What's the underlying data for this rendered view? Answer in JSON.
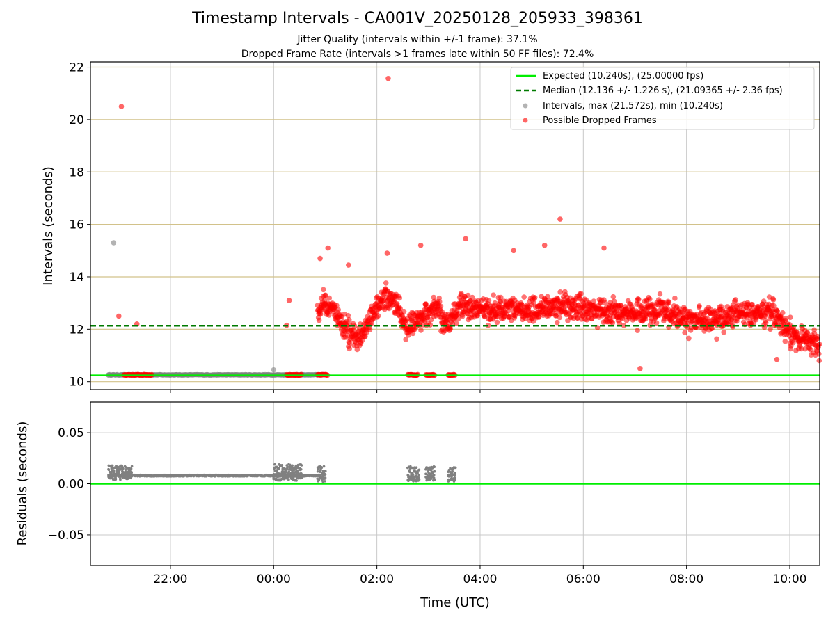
{
  "figure": {
    "title": "Timestamp Intervals - CA001V_20250128_205933_398361",
    "subtitle1": "Jitter Quality (intervals within +/-1 frame): 37.1%",
    "subtitle2": "Dropped Frame Rate (intervals >1 frames late within 50 FF files): 72.4%"
  },
  "chart_data": [
    {
      "type": "scatter",
      "name": "intervals",
      "ylabel": "Intervals (seconds)",
      "ylim": [
        9.7,
        22.2
      ],
      "xlim_hours": [
        -3.55,
        10.58
      ],
      "yticks": [
        10,
        12,
        14,
        16,
        18,
        20,
        22
      ],
      "grid": true,
      "legend_position": "top-right",
      "reference_lines": {
        "expected": 10.24,
        "median": 12.136,
        "horizontal_gridlines": [
          10,
          12,
          14,
          16,
          18,
          20,
          22
        ]
      },
      "legend": [
        "Expected (10.240s), (25.00000 fps)",
        "Median (12.136 +/- 1.226 s), (21.09365 +/- 2.36 fps)",
        "Intervals, max (21.572s), min (10.240s)",
        "Possible Dropped Frames"
      ],
      "series": [
        {
          "name": "Intervals, max (21.572s), min (10.240s)",
          "color": "#808080",
          "note_sparse_points": [
            [
              -3.1,
              15.3
            ],
            [
              0.0,
              10.45
            ],
            [
              -3.2,
              10.26
            ]
          ],
          "band": {
            "x_start": -3.2,
            "x_end": 0.95,
            "y": 10.26
          }
        },
        {
          "name": "Possible Dropped Frames",
          "color": "#ff0000",
          "outliers": [
            [
              -2.95,
              20.5
            ],
            [
              2.22,
              21.57
            ],
            [
              -3.0,
              12.5
            ],
            [
              -2.65,
              12.2
            ],
            [
              0.3,
              13.1
            ],
            [
              0.25,
              12.15
            ],
            [
              5.55,
              16.2
            ],
            [
              3.72,
              15.45
            ],
            [
              6.4,
              15.1
            ],
            [
              7.1,
              10.5
            ],
            [
              9.75,
              10.85
            ],
            [
              1.05,
              15.1
            ],
            [
              2.2,
              14.9
            ],
            [
              2.85,
              15.2
            ],
            [
              4.65,
              15.0
            ],
            [
              5.25,
              15.2
            ],
            [
              0.9,
              14.7
            ],
            [
              1.45,
              14.45
            ]
          ],
          "low_clusters": [
            {
              "x_start": -2.9,
              "x_end": -2.35,
              "y": 10.26
            },
            {
              "x_start": 0.25,
              "x_end": 0.55,
              "y": 10.26
            },
            {
              "x_start": 0.85,
              "x_end": 1.05,
              "y": 10.26
            },
            {
              "x_start": 2.6,
              "x_end": 2.8,
              "y": 10.26
            },
            {
              "x_start": 2.95,
              "x_end": 3.12,
              "y": 10.26
            },
            {
              "x_start": 3.38,
              "x_end": 3.52,
              "y": 10.26
            }
          ],
          "trend": [
            [
              0.85,
              12.5
            ],
            [
              1.0,
              13.0
            ],
            [
              1.2,
              12.7
            ],
            [
              1.4,
              11.9
            ],
            [
              1.6,
              11.6
            ],
            [
              1.8,
              12.1
            ],
            [
              2.0,
              12.9
            ],
            [
              2.2,
              13.2
            ],
            [
              2.4,
              13.0
            ],
            [
              2.55,
              12.0
            ],
            [
              2.75,
              12.3
            ],
            [
              2.9,
              12.5
            ],
            [
              3.15,
              12.8
            ],
            [
              3.4,
              12.1
            ],
            [
              3.6,
              12.9
            ],
            [
              4.0,
              12.7
            ],
            [
              4.5,
              12.8
            ],
            [
              5.0,
              12.7
            ],
            [
              5.5,
              12.9
            ],
            [
              6.0,
              12.8
            ],
            [
              6.5,
              12.7
            ],
            [
              7.0,
              12.6
            ],
            [
              7.5,
              12.8
            ],
            [
              8.0,
              12.3
            ],
            [
              8.5,
              12.4
            ],
            [
              9.0,
              12.6
            ],
            [
              9.5,
              12.6
            ],
            [
              9.75,
              12.5
            ],
            [
              10.0,
              11.8
            ],
            [
              10.3,
              11.6
            ],
            [
              10.58,
              11.4
            ]
          ]
        }
      ]
    },
    {
      "type": "scatter",
      "name": "residuals",
      "xlabel": "Time (UTC)",
      "ylabel": "Residuals (seconds)",
      "ylim": [
        -0.08,
        0.08
      ],
      "yticks": [
        0.05,
        0.0,
        -0.05
      ],
      "ytick_labels": [
        "0.05",
        "0.00",
        "−0.05"
      ],
      "xticks_hours": [
        -2,
        0,
        2,
        4,
        6,
        8,
        10
      ],
      "xtick_labels": [
        "22:00",
        "00:00",
        "02:00",
        "04:00",
        "06:00",
        "08:00",
        "10:00"
      ],
      "grid": true,
      "zero_line": 0.0,
      "series": [
        {
          "name": "residuals",
          "color": "#808080",
          "band": {
            "x_start": -3.2,
            "x_end": 0.9,
            "y": 0.008
          },
          "clusters": [
            {
              "x_start": -3.2,
              "x_end": -2.75,
              "y_min": 0.004,
              "y_max": 0.018
            },
            {
              "x_start": 0.0,
              "x_end": 0.55,
              "y_min": 0.003,
              "y_max": 0.019
            },
            {
              "x_start": 0.85,
              "x_end": 1.0,
              "y_min": 0.002,
              "y_max": 0.017
            },
            {
              "x_start": 2.6,
              "x_end": 2.82,
              "y_min": 0.002,
              "y_max": 0.017
            },
            {
              "x_start": 2.95,
              "x_end": 3.12,
              "y_min": 0.002,
              "y_max": 0.017
            },
            {
              "x_start": 3.38,
              "x_end": 3.52,
              "y_min": 0.002,
              "y_max": 0.017
            }
          ]
        }
      ]
    }
  ],
  "colors": {
    "expected_line": "#00ee00",
    "median_line": "#007a00",
    "horizontal_grid": "#d2c28a",
    "vertical_grid": "#c8c8c8",
    "dropped": "#ff0000",
    "intervals": "#808080"
  }
}
